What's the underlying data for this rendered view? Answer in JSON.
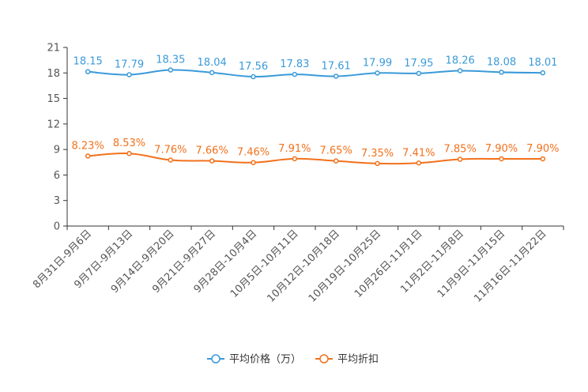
{
  "chart_data": {
    "type": "line",
    "categories": [
      "8月31日-9月6日",
      "9月7日-9月13日",
      "9月14日-9月20日",
      "9月21日-9月27日",
      "9月28日-10月4日",
      "10月5日-10月11日",
      "10月12日-10月18日",
      "10月19日-10月25日",
      "10月26日-11月1日",
      "11月2日-11月8日",
      "11月9日-11月15日",
      "11月16日-11月22日"
    ],
    "y_ticks": [
      "0",
      "3",
      "6",
      "9",
      "12",
      "15",
      "18",
      "21"
    ],
    "ylim": [
      0,
      21
    ],
    "series": [
      {
        "name": "平均价格（万）",
        "color": "#3a9ad9",
        "values": [
          18.15,
          17.79,
          18.35,
          18.04,
          17.56,
          17.83,
          17.61,
          17.99,
          17.95,
          18.26,
          18.08,
          18.01
        ],
        "labels": [
          "18.15",
          "17.79",
          "18.35",
          "18.04",
          "17.56",
          "17.83",
          "17.61",
          "17.99",
          "17.95",
          "18.26",
          "18.08",
          "18.01"
        ]
      },
      {
        "name": "平均折扣",
        "color": "#f2711c",
        "values": [
          8.23,
          8.53,
          7.76,
          7.66,
          7.46,
          7.91,
          7.65,
          7.35,
          7.41,
          7.85,
          7.9,
          7.9
        ],
        "labels": [
          "8.23%",
          "8.53%",
          "7.76%",
          "7.66%",
          "7.46%",
          "7.91%",
          "7.65%",
          "7.35%",
          "7.41%",
          "7.85%",
          "7.90%",
          "7.90%"
        ]
      }
    ],
    "legend_position": "bottom-center",
    "grid": false
  }
}
